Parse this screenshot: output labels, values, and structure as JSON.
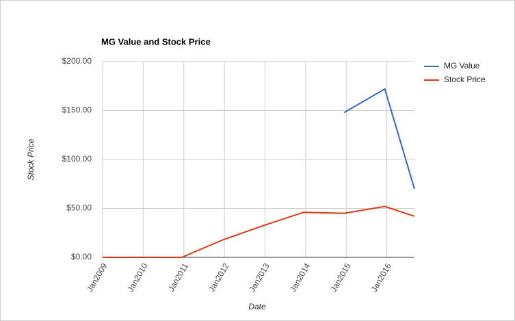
{
  "chart_data": {
    "type": "line",
    "title": "MG Value and Stock Price",
    "x_label": "Date",
    "y_label": "Stock Price",
    "x": [
      2009,
      2010,
      2010.95,
      2011.97,
      2013,
      2013.95,
      2014.95,
      2015.95,
      2016.68
    ],
    "series": [
      {
        "name": "MG Value",
        "color": "#3366cc",
        "values": [
          null,
          null,
          null,
          null,
          null,
          null,
          148,
          172,
          70
        ]
      },
      {
        "name": "Stock Price",
        "color": "#dc3912",
        "values": [
          0,
          0,
          0,
          18,
          33,
          46,
          45,
          52,
          42
        ]
      }
    ],
    "xlim": [
      2009,
      2016.68
    ],
    "xticks": [
      {
        "value": 2009,
        "label": "Jan2009"
      },
      {
        "value": 2010,
        "label": "Jan2010"
      },
      {
        "value": 2011,
        "label": "Jan2011"
      },
      {
        "value": 2012,
        "label": "Jan2012"
      },
      {
        "value": 2013,
        "label": "Jan2013"
      },
      {
        "value": 2014,
        "label": "Jan2014"
      },
      {
        "value": 2015,
        "label": "Jan2015"
      },
      {
        "value": 2016,
        "label": "Jan2016"
      }
    ],
    "ylim": [
      0,
      200
    ],
    "yticks": [
      {
        "value": 0,
        "label": "$0.00"
      },
      {
        "value": 50,
        "label": "$50.00"
      },
      {
        "value": 100,
        "label": "$100.00"
      },
      {
        "value": 150,
        "label": "$150.00"
      },
      {
        "value": 200,
        "label": "$200.00"
      }
    ],
    "grid": true,
    "legend": "right"
  }
}
